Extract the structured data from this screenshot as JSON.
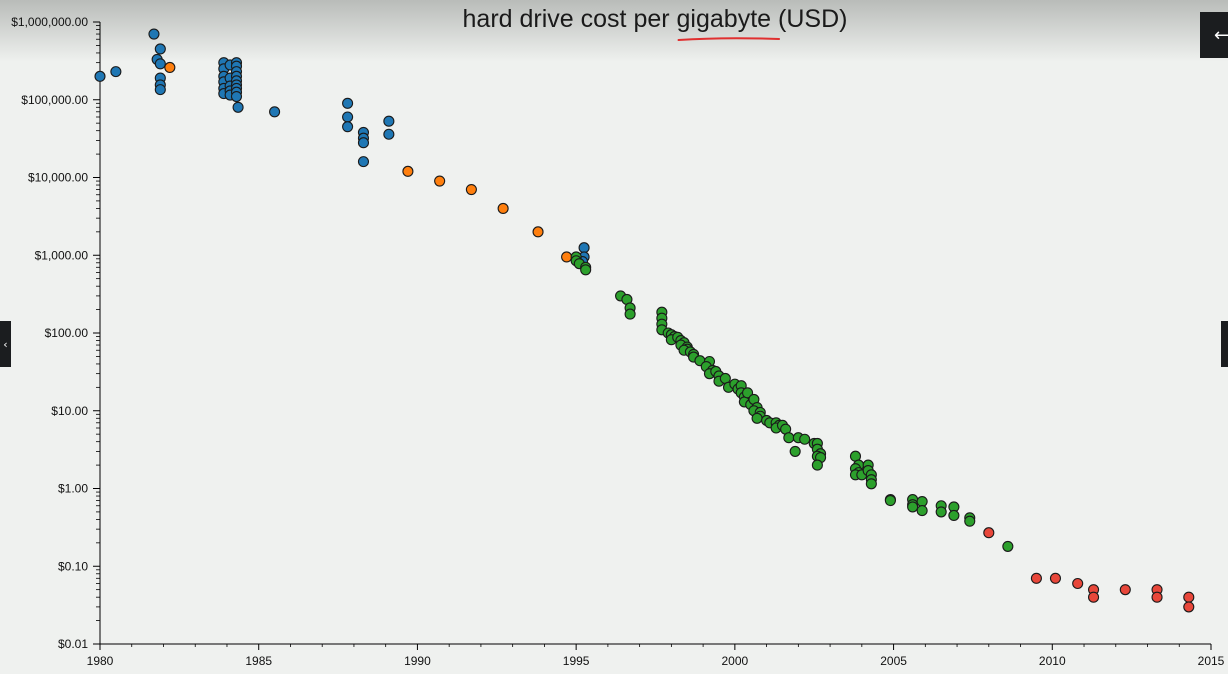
{
  "chart_data": {
    "type": "scatter",
    "title": "hard drive cost per gigabyte (USD)",
    "title_underlined_word": "gigabyte",
    "xlabel": "",
    "ylabel": "",
    "y_scale": "log",
    "xlim": [
      1980,
      2015
    ],
    "ylim": [
      0.01,
      1000000
    ],
    "x_ticks": [
      1980,
      1985,
      1990,
      1995,
      2000,
      2005,
      2010,
      2015
    ],
    "y_ticks": [
      {
        "value": 1000000,
        "label": "$1,000,000.00"
      },
      {
        "value": 100000,
        "label": "$100,000.00"
      },
      {
        "value": 10000,
        "label": "$10,000.00"
      },
      {
        "value": 1000,
        "label": "$1,000.00"
      },
      {
        "value": 100,
        "label": "$100.00"
      },
      {
        "value": 10,
        "label": "$10.00"
      },
      {
        "value": 1,
        "label": "$1.00"
      },
      {
        "value": 0.1,
        "label": "$0.10"
      },
      {
        "value": 0.01,
        "label": "$0.01"
      }
    ],
    "grid": false,
    "legend": "none",
    "series": [
      {
        "color": "#1f77b4",
        "points": [
          [
            1980.0,
            200000
          ],
          [
            1980.5,
            230000
          ],
          [
            1981.7,
            700000
          ],
          [
            1981.9,
            450000
          ],
          [
            1981.8,
            330000
          ],
          [
            1981.9,
            290000
          ],
          [
            1981.9,
            190000
          ],
          [
            1981.9,
            155000
          ],
          [
            1981.9,
            135000
          ],
          [
            1983.9,
            300000
          ],
          [
            1983.9,
            250000
          ],
          [
            1983.9,
            200000
          ],
          [
            1983.9,
            170000
          ],
          [
            1983.9,
            140000
          ],
          [
            1983.9,
            120000
          ],
          [
            1984.1,
            280000
          ],
          [
            1984.1,
            190000
          ],
          [
            1984.1,
            150000
          ],
          [
            1984.1,
            130000
          ],
          [
            1984.1,
            115000
          ],
          [
            1984.3,
            300000
          ],
          [
            1984.3,
            270000
          ],
          [
            1984.3,
            230000
          ],
          [
            1984.3,
            200000
          ],
          [
            1984.3,
            175000
          ],
          [
            1984.3,
            155000
          ],
          [
            1984.3,
            140000
          ],
          [
            1984.3,
            125000
          ],
          [
            1984.3,
            110000
          ],
          [
            1984.35,
            80000
          ],
          [
            1985.5,
            70000
          ],
          [
            1987.8,
            90000
          ],
          [
            1987.8,
            60000
          ],
          [
            1987.8,
            45000
          ],
          [
            1988.3,
            38000
          ],
          [
            1988.3,
            32000
          ],
          [
            1988.3,
            28000
          ],
          [
            1988.3,
            16000
          ],
          [
            1989.1,
            53000
          ],
          [
            1989.1,
            36000
          ],
          [
            1995.25,
            1250
          ],
          [
            1995.25,
            950
          ],
          [
            1995.2,
            830
          ]
        ]
      },
      {
        "color": "#ff7f0e",
        "points": [
          [
            1982.2,
            260000
          ],
          [
            1989.7,
            12000
          ],
          [
            1990.7,
            9000
          ],
          [
            1991.7,
            7000
          ],
          [
            1992.7,
            4000
          ],
          [
            1993.8,
            2000
          ],
          [
            1994.7,
            950
          ]
        ]
      },
      {
        "color": "#2ca02c",
        "points": [
          [
            1995.0,
            950
          ],
          [
            1995.0,
            850
          ],
          [
            1995.1,
            780
          ],
          [
            1995.3,
            700
          ],
          [
            1995.3,
            650
          ],
          [
            1996.4,
            300
          ],
          [
            1996.6,
            270
          ],
          [
            1996.7,
            210
          ],
          [
            1996.7,
            175
          ],
          [
            1997.7,
            185
          ],
          [
            1997.7,
            155
          ],
          [
            1997.7,
            130
          ],
          [
            1997.7,
            110
          ],
          [
            1997.9,
            100
          ],
          [
            1998.0,
            95
          ],
          [
            1998.1,
            90
          ],
          [
            1998.0,
            82
          ],
          [
            1998.2,
            88
          ],
          [
            1998.3,
            80
          ],
          [
            1998.4,
            75
          ],
          [
            1998.3,
            70
          ],
          [
            1998.5,
            66
          ],
          [
            1998.5,
            62
          ],
          [
            1998.4,
            60
          ],
          [
            1998.6,
            57
          ],
          [
            1998.7,
            53
          ],
          [
            1998.7,
            49
          ],
          [
            1998.9,
            44
          ],
          [
            1999.2,
            43
          ],
          [
            1999.1,
            37
          ],
          [
            1999.3,
            33
          ],
          [
            1999.2,
            30
          ],
          [
            1999.4,
            32
          ],
          [
            1999.5,
            28
          ],
          [
            1999.5,
            24
          ],
          [
            1999.7,
            26
          ],
          [
            1999.8,
            20
          ],
          [
            2000.0,
            22
          ],
          [
            2000.1,
            19
          ],
          [
            2000.2,
            21
          ],
          [
            2000.2,
            17
          ],
          [
            2000.3,
            15
          ],
          [
            2000.3,
            13
          ],
          [
            2000.4,
            17
          ],
          [
            2000.5,
            12
          ],
          [
            2000.6,
            14
          ],
          [
            2000.7,
            11
          ],
          [
            2000.6,
            10
          ],
          [
            2000.8,
            9.5
          ],
          [
            2000.8,
            8.5
          ],
          [
            2000.7,
            8
          ],
          [
            2001.0,
            7.5
          ],
          [
            2001.1,
            7
          ],
          [
            2001.3,
            7
          ],
          [
            2001.4,
            6.5
          ],
          [
            2001.3,
            6
          ],
          [
            2001.5,
            6.5
          ],
          [
            2001.6,
            5.8
          ],
          [
            2001.7,
            4.5
          ],
          [
            2001.9,
            3
          ],
          [
            2002.0,
            4.5
          ],
          [
            2002.2,
            4.3
          ],
          [
            2002.5,
            3.8
          ],
          [
            2002.6,
            3.8
          ],
          [
            2002.6,
            3.2
          ],
          [
            2002.7,
            2.8
          ],
          [
            2002.6,
            2.6
          ],
          [
            2002.7,
            2.5
          ],
          [
            2002.6,
            2.0
          ],
          [
            2003.8,
            2.6
          ],
          [
            2003.9,
            2.0
          ],
          [
            2003.8,
            1.8
          ],
          [
            2003.9,
            1.6
          ],
          [
            2003.8,
            1.5
          ],
          [
            2004.0,
            1.5
          ],
          [
            2004.2,
            2.0
          ],
          [
            2004.2,
            1.7
          ],
          [
            2004.3,
            1.5
          ],
          [
            2004.3,
            1.3
          ],
          [
            2004.3,
            1.15
          ],
          [
            2004.9,
            0.72
          ],
          [
            2004.9,
            0.7
          ],
          [
            2005.6,
            0.72
          ],
          [
            2005.6,
            0.62
          ],
          [
            2005.6,
            0.58
          ],
          [
            2005.9,
            0.68
          ],
          [
            2005.9,
            0.52
          ],
          [
            2006.5,
            0.6
          ],
          [
            2006.5,
            0.5
          ],
          [
            2006.9,
            0.58
          ],
          [
            2006.9,
            0.45
          ],
          [
            2007.4,
            0.42
          ],
          [
            2007.4,
            0.38
          ],
          [
            2008.6,
            0.18
          ]
        ]
      },
      {
        "color": "#e8473a",
        "points": [
          [
            2008.0,
            0.27
          ],
          [
            2009.5,
            0.07
          ],
          [
            2010.1,
            0.07
          ],
          [
            2010.8,
            0.06
          ],
          [
            2011.3,
            0.05
          ],
          [
            2011.3,
            0.04
          ],
          [
            2012.3,
            0.05
          ],
          [
            2013.3,
            0.05
          ],
          [
            2013.3,
            0.04
          ],
          [
            2014.3,
            0.04
          ],
          [
            2014.3,
            0.03
          ]
        ]
      }
    ]
  },
  "ui": {
    "nav_back_glyph": "←",
    "nav_prev_glyph": "‹"
  }
}
